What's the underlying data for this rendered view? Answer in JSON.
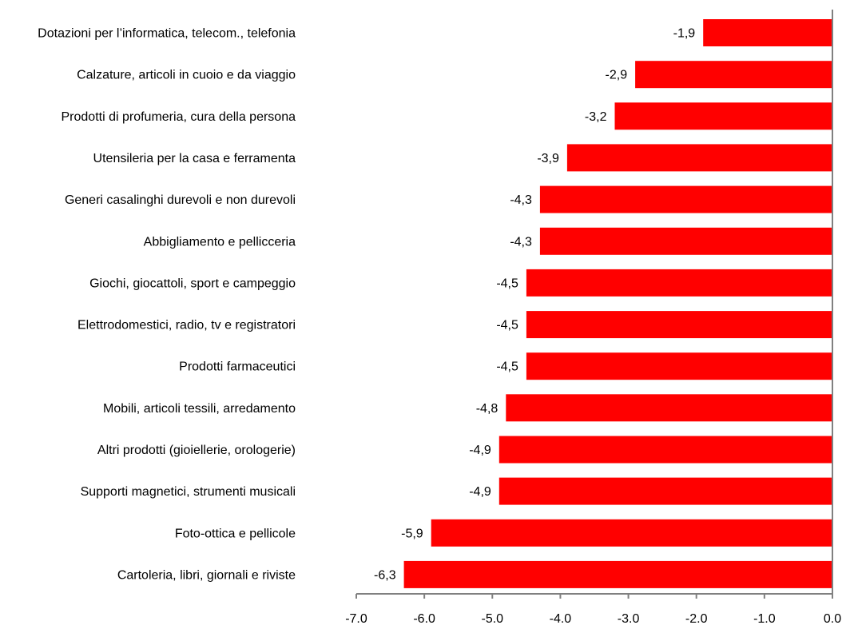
{
  "chart_data": {
    "type": "bar",
    "orientation": "horizontal",
    "title": "",
    "xlabel": "",
    "ylabel": "",
    "xlim": [
      -7.0,
      0.0
    ],
    "grid": false,
    "legend": "none",
    "bar_color": "#ff0000",
    "categories": [
      "Dotazioni per l’informatica, telecom., telefonia",
      "Calzature, articoli in cuoio e da viaggio",
      "Prodotti di profumeria, cura della persona",
      "Utensileria per la casa e ferramenta",
      "Generi casalinghi durevoli e non durevoli",
      "Abbigliamento e pellicceria",
      "Giochi, giocattoli, sport e campeggio",
      "Elettrodomestici, radio, tv e registratori",
      "Prodotti farmaceutici",
      "Mobili, articoli tessili, arredamento",
      "Altri prodotti (gioiellerie, orologerie)",
      "Supporti magnetici, strumenti musicali",
      "Foto-ottica e pellicole",
      "Cartoleria, libri, giornali e riviste"
    ],
    "values": [
      -1.9,
      -2.9,
      -3.2,
      -3.9,
      -4.3,
      -4.3,
      -4.5,
      -4.5,
      -4.5,
      -4.8,
      -4.9,
      -4.9,
      -5.9,
      -6.3
    ],
    "value_labels": [
      "-1,9",
      "-2,9",
      "-3,2",
      "-3,9",
      "-4,3",
      "-4,3",
      "-4,5",
      "-4,5",
      "-4,5",
      "-4,8",
      "-4,9",
      "-4,9",
      "-5,9",
      "-6,3"
    ],
    "x_ticks": [
      -7.0,
      -6.0,
      -5.0,
      -4.0,
      -3.0,
      -2.0,
      -1.0,
      0.0
    ],
    "x_tick_labels": [
      "-7.0",
      "-6.0",
      "-5.0",
      "-4.0",
      "-3.0",
      "-2.0",
      "-1.0",
      "0.0"
    ]
  }
}
